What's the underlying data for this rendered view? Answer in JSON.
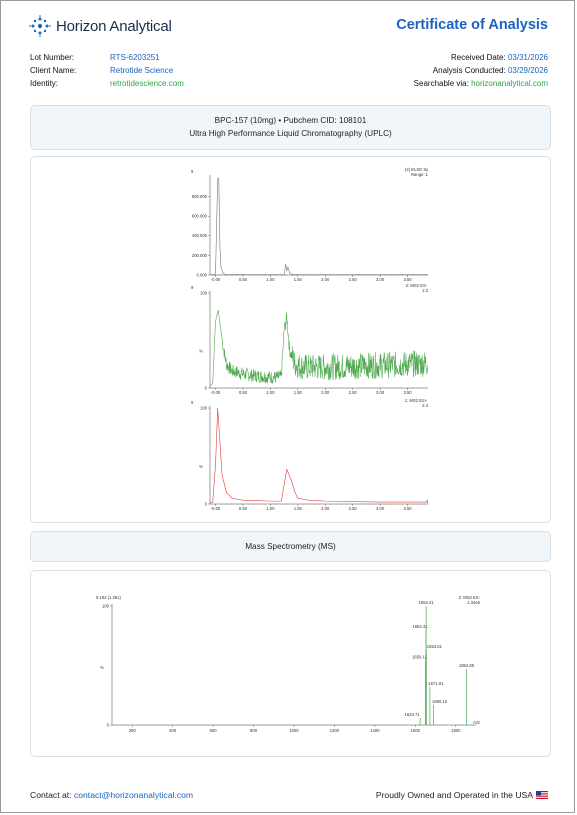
{
  "header": {
    "company": "Horizon Analytical",
    "doc_title": "Certificate of Analysis"
  },
  "meta": {
    "lot_label": "Lot Number:",
    "lot_value": "RTS-6203251",
    "client_label": "Client Name:",
    "client_value": "Retrotide Science",
    "identity_label": "Identity:",
    "identity_value": "retrotidescience.com",
    "received_label": "Received Date:",
    "received_value": "03/31/2026",
    "conducted_label": "Analysis Conducted:",
    "conducted_value": "03/29/2026",
    "searchable_label": "Searchable via:",
    "searchable_value": "horizonanalytical.com"
  },
  "sections": {
    "compound_line": "BPC-157 (10mg) • Pubchem CID: 108101",
    "method_line": "Ultra High Performance Liquid Chromatography (UPLC)",
    "ms_title": "Mass Spectrometry (MS)"
  },
  "colors": {
    "brand_blue": "#1a63c1",
    "accent_green": "#28a745",
    "elsd_trace": "#777777",
    "ms_es_minus_trace": "#4fa84f",
    "ms_es_plus_trace": "#e8383a"
  },
  "chart_data": [
    {
      "type": "line",
      "title": "(2) ELSD Signal",
      "subtitle": "Range: 1077",
      "corner_label": "9",
      "xlabel": "",
      "ylabel": "",
      "xlim": [
        -0.1,
        4.0
      ],
      "ylim": [
        0,
        1000000
      ],
      "x_ticks": [
        "-0.00",
        "0.50",
        "1.00",
        "1.50",
        "2.00",
        "2.50",
        "3.00",
        "3.50",
        "4.00"
      ],
      "y_ticks": [
        "0.000",
        "200.000",
        "400.000",
        "600.000",
        "800.000"
      ],
      "series": [
        {
          "values": [
            [
              -0.1,
              5000
            ],
            [
              -0.05,
              5000
            ],
            [
              0.0,
              5000
            ],
            [
              0.04,
              980000
            ],
            [
              0.06,
              990000
            ],
            [
              0.08,
              300000
            ],
            [
              0.1,
              80000
            ],
            [
              0.14,
              15000
            ],
            [
              0.2,
              5000
            ],
            [
              0.4,
              4000
            ],
            [
              0.6,
              3000
            ],
            [
              1.0,
              3000
            ],
            [
              1.25,
              3000
            ],
            [
              1.28,
              110000
            ],
            [
              1.3,
              40000
            ],
            [
              1.32,
              85000
            ],
            [
              1.35,
              20000
            ],
            [
              1.4,
              6000
            ],
            [
              1.5,
              4000
            ],
            [
              2.0,
              3000
            ],
            [
              2.5,
              3000
            ],
            [
              3.0,
              3000
            ],
            [
              3.5,
              3000
            ],
            [
              3.9,
              3000
            ],
            [
              4.0,
              3000
            ]
          ]
        }
      ]
    },
    {
      "type": "line",
      "title": "2: MS2 ES- TIC",
      "subtitle": "2.34e7",
      "corner_label": "9",
      "ylabel": "%",
      "xlim": [
        -0.1,
        4.0
      ],
      "ylim": [
        0,
        100
      ],
      "x_ticks": [
        "-0.00",
        "0.50",
        "1.00",
        "1.50",
        "2.00",
        "2.50",
        "3.00",
        "3.50",
        "4.00"
      ],
      "y_ticks": [
        "0",
        "100"
      ],
      "series": [
        {
          "values": [
            [
              -0.1,
              2
            ],
            [
              -0.05,
              5
            ],
            [
              0.0,
              70
            ],
            [
              0.05,
              82
            ],
            [
              0.1,
              60
            ],
            [
              0.15,
              40
            ],
            [
              0.2,
              25
            ],
            [
              0.3,
              18
            ],
            [
              0.5,
              15
            ],
            [
              0.7,
              13
            ],
            [
              0.9,
              12
            ],
            [
              1.1,
              11
            ],
            [
              1.2,
              12
            ],
            [
              1.25,
              60
            ],
            [
              1.3,
              75
            ],
            [
              1.35,
              40
            ],
            [
              1.45,
              25
            ],
            [
              1.6,
              22
            ],
            [
              2.0,
              22
            ],
            [
              2.5,
              23
            ],
            [
              3.0,
              24
            ],
            [
              3.5,
              25
            ],
            [
              3.9,
              26
            ],
            [
              4.0,
              26
            ]
          ]
        }
      ]
    },
    {
      "type": "line",
      "title": "1: MS2 ES+ TIC",
      "subtitle": "2.44e8",
      "corner_label": "9",
      "ylabel": "%",
      "xlim": [
        -0.1,
        4.0
      ],
      "ylim": [
        0,
        100
      ],
      "x_ticks": [
        "-0.00",
        "0.50",
        "1.00",
        "1.50",
        "2.00",
        "2.50",
        "3.00",
        "3.50",
        "4.00"
      ],
      "y_ticks": [
        "0",
        "100"
      ],
      "xlabel": "Time",
      "series": [
        {
          "values": [
            [
              -0.1,
              1
            ],
            [
              -0.05,
              2
            ],
            [
              0.0,
              40
            ],
            [
              0.04,
              100
            ],
            [
              0.08,
              65
            ],
            [
              0.12,
              30
            ],
            [
              0.2,
              12
            ],
            [
              0.3,
              6
            ],
            [
              0.5,
              4
            ],
            [
              1.0,
              3
            ],
            [
              1.2,
              3
            ],
            [
              1.25,
              20
            ],
            [
              1.3,
              36
            ],
            [
              1.33,
              32
            ],
            [
              1.38,
              25
            ],
            [
              1.45,
              12
            ],
            [
              1.5,
              6
            ],
            [
              1.7,
              4
            ],
            [
              2.0,
              3
            ],
            [
              3.0,
              2
            ],
            [
              3.5,
              2
            ],
            [
              3.9,
              2
            ],
            [
              3.95,
              7
            ],
            [
              4.0,
              7
            ]
          ]
        }
      ]
    },
    {
      "type": "bar",
      "title": "2: MS2 ES-",
      "subtitle": "1.34e6",
      "corner_label": "9.193 (1.351)",
      "xlabel": "m/z",
      "ylabel": "%",
      "xlim": [
        100,
        1900
      ],
      "ylim": [
        0,
        100
      ],
      "x_ticks": [
        "200",
        "400",
        "600",
        "800",
        "1000",
        "1200",
        "1400",
        "1600",
        "1800"
      ],
      "y_ticks": [
        "0",
        "100"
      ],
      "peaks": [
        {
          "mz": 1653.31,
          "label": "1653.31",
          "value": 100
        },
        {
          "mz": 1652.41,
          "label": "1652.41",
          "value": 80
        },
        {
          "mz": 1654.51,
          "label": "1654.51",
          "value": 63
        },
        {
          "mz": 1650.11,
          "label": "1650.11",
          "value": 54
        },
        {
          "mz": 1852.85,
          "label": "1852.85",
          "value": 47
        },
        {
          "mz": 1671.91,
          "label": "1671.91",
          "value": 32
        },
        {
          "mz": 1690.12,
          "label": "1690.12",
          "value": 17
        },
        {
          "mz": 1623.71,
          "label": "1623.71",
          "value": 6
        }
      ]
    }
  ],
  "footer": {
    "contact_label": "Contact at:",
    "contact_email": "contact@horizonanalytical.com",
    "made_in": "Proudly Owned and Operated in the USA"
  }
}
